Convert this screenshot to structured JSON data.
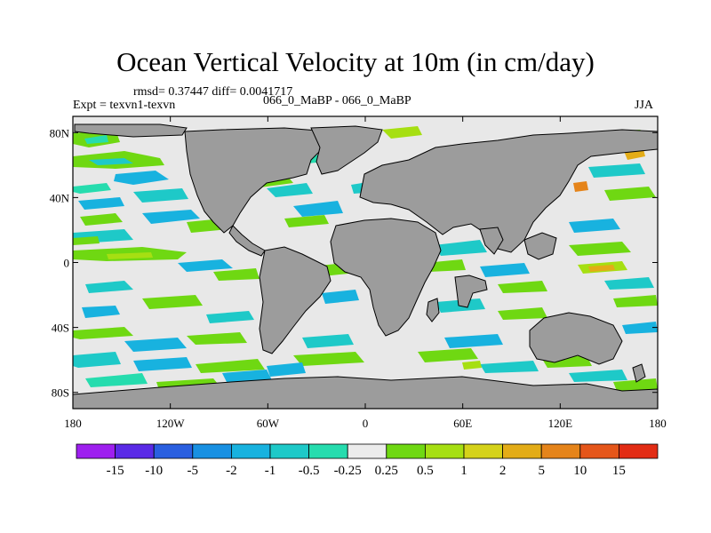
{
  "title": "Ocean Vertical Velocity at 10m (in cm/day)",
  "stats": "rmsd= 0.37447 diff= 0.0041717",
  "experiment": "Expt = texvn1-texvn",
  "comparison": "066_0_MaBP - 066_0_MaBP",
  "season": "JJA",
  "x_ticks": [
    "180",
    "120W",
    "60W",
    "0",
    "60E",
    "120E",
    "180"
  ],
  "y_ticks": [
    "80N",
    "40N",
    "0",
    "40S",
    "80S"
  ],
  "colorbar": {
    "labels": [
      "-15",
      "-10",
      "-5",
      "-2",
      "-1",
      "-0.5",
      "-0.25",
      "0.25",
      "0.5",
      "1",
      "2",
      "5",
      "10",
      "15"
    ],
    "colors": [
      "#9e1fef",
      "#5a2ae6",
      "#2a5fe0",
      "#1890e2",
      "#18b2df",
      "#1ec9c8",
      "#26dcae",
      "#ececec",
      "#6fd812",
      "#a6df12",
      "#d5d21a",
      "#e3ac17",
      "#e5841a",
      "#e5561a",
      "#e22c14"
    ]
  },
  "land_color": "#9c9c9c",
  "ocean_color": "#e8e8e8"
}
